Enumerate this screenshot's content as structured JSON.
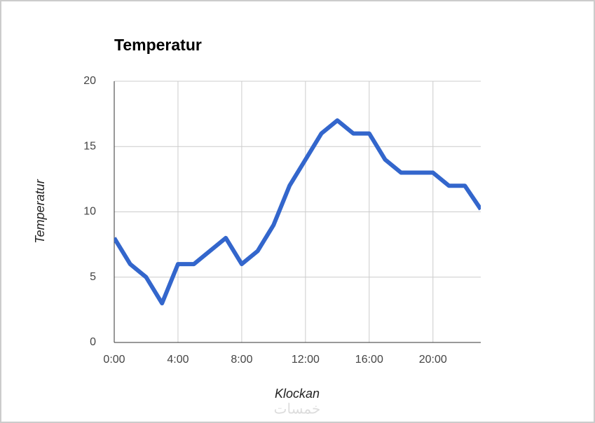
{
  "chart_data": {
    "type": "line",
    "title": "Temperatur",
    "x_label": "Klockan",
    "y_label": "Temperatur",
    "x": [
      0,
      1,
      2,
      3,
      4,
      5,
      6,
      7,
      8,
      9,
      10,
      11,
      12,
      13,
      14,
      15,
      16,
      17,
      18,
      19,
      20,
      21,
      22,
      23
    ],
    "series": [
      {
        "name": "Temperatur",
        "color": "#3366cc",
        "values": [
          8,
          6,
          5,
          3,
          6,
          6,
          7,
          8,
          6,
          7,
          9,
          12,
          14,
          16,
          17,
          16,
          16,
          14,
          13,
          13,
          13,
          12,
          12,
          10.2
        ]
      }
    ],
    "xlim": [
      0,
      23
    ],
    "xticks": [
      {
        "value": 0,
        "label": "0:00"
      },
      {
        "value": 4,
        "label": "4:00"
      },
      {
        "value": 8,
        "label": "8:00"
      },
      {
        "value": 12,
        "label": "12:00"
      },
      {
        "value": 16,
        "label": "16:00"
      },
      {
        "value": 20,
        "label": "20:00"
      }
    ],
    "ylim": [
      0,
      20
    ],
    "yticks": [
      0,
      5,
      10,
      15,
      20
    ],
    "grid": true,
    "legend": false,
    "watermark": "خمسات"
  }
}
